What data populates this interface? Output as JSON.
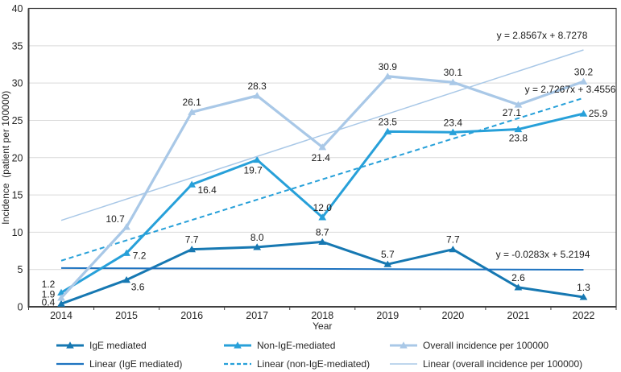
{
  "chart_data": {
    "type": "line",
    "title": "",
    "categories": [
      "2014",
      "2015",
      "2016",
      "2017",
      "2018",
      "2019",
      "2020",
      "2021",
      "2022"
    ],
    "xlabel": "Year",
    "ylabel": "Incidence  (patient per 100000)",
    "ylim": [
      0,
      40
    ],
    "y_tick_step": 5,
    "y_ticks": [
      "0",
      "5",
      "10",
      "15",
      "20",
      "25",
      "30",
      "35",
      "40"
    ],
    "grid": "horizontal gridlines every 5 units",
    "legend_position": "bottom",
    "series": [
      {
        "name": "IgE mediated",
        "values": [
          0.4,
          3.6,
          7.7,
          8.0,
          8.7,
          5.7,
          7.7,
          2.6,
          1.3
        ],
        "labels": [
          "0.4",
          "3.6",
          "7.7",
          "8.0",
          "8.7",
          "5.7",
          "7.7",
          "2.6",
          "1.3"
        ],
        "color": "#1678b2",
        "marker": "triangle",
        "line": "solid"
      },
      {
        "name": "Non-IgE-mediated",
        "values": [
          1.9,
          7.2,
          16.4,
          19.7,
          12.0,
          23.5,
          23.4,
          23.8,
          25.9
        ],
        "labels": [
          "1.9",
          "7.2",
          "16.4",
          "19.7",
          "12.0",
          "23.5",
          "23.4",
          "23.8",
          "25.9"
        ],
        "color": "#27a0d9",
        "marker": "triangle",
        "line": "solid"
      },
      {
        "name": "Overall incidence per 100000",
        "values": [
          1.2,
          10.7,
          26.1,
          28.3,
          21.4,
          30.9,
          30.1,
          27.1,
          30.2
        ],
        "labels": [
          "1.2",
          "10.7",
          "26.1",
          "28.3",
          "21.4",
          "30.9",
          "30.1",
          "27.1",
          "30.2"
        ],
        "color": "#a9c8e7",
        "marker": "triangle",
        "line": "solid"
      }
    ],
    "trendlines": [
      {
        "name": "Linear (IgE mediated)",
        "equation": "y = -0.0283x + 5.2194",
        "slope": -0.0283,
        "intercept": 5.2194,
        "color": "#1e73c0",
        "style": "solid",
        "width": 2
      },
      {
        "name": "Linear (non-IgE-mediated)",
        "equation": "y = 2.7267x + 3.4556",
        "slope": 2.7267,
        "intercept": 3.4556,
        "color": "#27a0d9",
        "style": "dashed",
        "width": 2
      },
      {
        "name": "Linear (overall incidence per 100000)",
        "equation": "y = 2.8567x + 8.7278",
        "slope": 2.8567,
        "intercept": 8.7278,
        "color": "#a9c8e7",
        "style": "solid",
        "width": 1.5
      }
    ]
  },
  "legend": {
    "rows": [
      [
        {
          "label": "IgE mediated",
          "swatch": "line-triangle",
          "color": "#1678b2"
        },
        {
          "label": "Non-IgE-mediated",
          "swatch": "line-triangle",
          "color": "#27a0d9"
        },
        {
          "label": "Overall incidence per 100000",
          "swatch": "line-triangle",
          "color": "#a9c8e7"
        }
      ],
      [
        {
          "label": "Linear (IgE mediated)",
          "swatch": "line",
          "color": "#1e73c0"
        },
        {
          "label": "Linear (non-IgE-mediated)",
          "swatch": "dashed-line",
          "color": "#27a0d9"
        },
        {
          "label": "Linear (overall incidence per 100000)",
          "swatch": "thin-line",
          "color": "#a9c8e7"
        }
      ]
    ]
  },
  "colors": {
    "grid": "#d9d9d9",
    "axis": "#404040",
    "text": "#262626"
  }
}
